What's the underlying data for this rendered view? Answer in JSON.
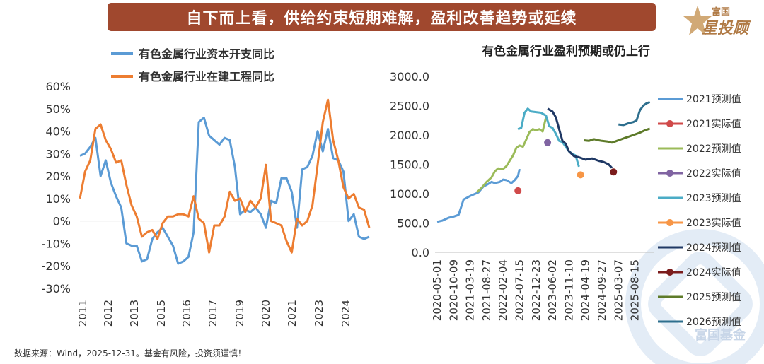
{
  "banner": {
    "title": "自下而上看，供给约束短期难解，盈利改善趋势或延续"
  },
  "logo": {
    "line1": "富国",
    "line2": "星投顾"
  },
  "watermark": {
    "text": "富国基金"
  },
  "source": {
    "text": "数据来源：Wind，2025-12-31。基金有风险，投资须谨慎！"
  },
  "colors": {
    "blue": "#5b9bd5",
    "orange": "#ed7d31",
    "banner": "#a0482e"
  },
  "chart_data": [
    {
      "type": "line",
      "title": "",
      "ylim": [
        -30,
        60
      ],
      "yticks": [
        "60%",
        "50%",
        "40%",
        "30%",
        "20%",
        "10%",
        "0%",
        "-10%",
        "-20%",
        "-30%"
      ],
      "xticks": [
        "2011",
        "2012",
        "2013",
        "2015",
        "2016",
        "2017",
        "2019",
        "2020",
        "2021",
        "2023",
        "2024"
      ],
      "xrange": [
        2011.0,
        2025.0
      ],
      "series": [
        {
          "name": "有色金属行业资本开支同比",
          "color": "#5b9bd5",
          "x": [
            2011.0,
            2011.25,
            2011.5,
            2011.75,
            2012.0,
            2012.25,
            2012.5,
            2012.75,
            2013.0,
            2013.25,
            2013.5,
            2013.75,
            2014.0,
            2014.25,
            2014.5,
            2014.75,
            2015.0,
            2015.25,
            2015.5,
            2015.75,
            2016.0,
            2016.25,
            2016.5,
            2016.75,
            2017.0,
            2017.25,
            2017.5,
            2017.75,
            2018.0,
            2018.25,
            2018.5,
            2018.75,
            2019.0,
            2019.25,
            2019.5,
            2019.75,
            2020.0,
            2020.25,
            2020.5,
            2020.75,
            2021.0,
            2021.25,
            2021.5,
            2021.75,
            2022.0,
            2022.25,
            2022.5,
            2022.75,
            2023.0,
            2023.25,
            2023.5,
            2023.75,
            2024.0,
            2024.25,
            2024.5,
            2024.75,
            2025.0
          ],
          "y": [
            29,
            30,
            33,
            37,
            20,
            27,
            17,
            11,
            6,
            -10,
            -11,
            -11,
            -18,
            -17,
            -8,
            -5,
            -3,
            -7,
            -11,
            -19,
            -18,
            -16,
            -5,
            44,
            46,
            38,
            36,
            34,
            37,
            36,
            24,
            3,
            5,
            4,
            6,
            3,
            -3,
            9,
            8,
            19,
            19,
            13,
            -3,
            23,
            24,
            29,
            40,
            31,
            41,
            28,
            27,
            22,
            0,
            3,
            -7,
            -8,
            -7
          ]
        },
        {
          "name": "有色金属行业在建工程同比",
          "color": "#ed7d31",
          "x": [
            2011.0,
            2011.25,
            2011.5,
            2011.75,
            2012.0,
            2012.25,
            2012.5,
            2012.75,
            2013.0,
            2013.25,
            2013.5,
            2013.75,
            2014.0,
            2014.25,
            2014.5,
            2014.75,
            2015.0,
            2015.25,
            2015.5,
            2015.75,
            2016.0,
            2016.25,
            2016.5,
            2016.75,
            2017.0,
            2017.25,
            2017.5,
            2017.75,
            2018.0,
            2018.25,
            2018.5,
            2018.75,
            2019.0,
            2019.25,
            2019.5,
            2019.75,
            2020.0,
            2020.25,
            2020.5,
            2020.75,
            2021.0,
            2021.25,
            2021.5,
            2021.75,
            2022.0,
            2022.25,
            2022.5,
            2022.75,
            2023.0,
            2023.25,
            2023.5,
            2023.75,
            2024.0,
            2024.25,
            2024.5,
            2024.75,
            2025.0
          ],
          "y": [
            10,
            22,
            27,
            41,
            43,
            36,
            32,
            26,
            27,
            16,
            7,
            2,
            -7,
            -5,
            -4,
            -8,
            -1,
            2,
            2,
            3,
            3,
            2,
            11,
            1,
            -1,
            -14,
            -2,
            -2,
            2,
            13,
            9,
            10,
            4,
            9,
            6,
            10,
            25,
            0,
            -1,
            -2,
            -9,
            -14,
            1,
            -2,
            0,
            7,
            25,
            44,
            54,
            36,
            27,
            15,
            10,
            12,
            6,
            5,
            -3
          ]
        }
      ]
    },
    {
      "type": "line",
      "title": "有色金属行业盈利预期或仍上行",
      "ylim": [
        0,
        3000
      ],
      "yticks": [
        "3000.0",
        "2500.0",
        "2000.0",
        "1500.0",
        "1000.0",
        "500.0",
        "0.0"
      ],
      "xticks": [
        "2020-05-01",
        "2020-10-09",
        "2021-03-19",
        "2021-08-27",
        "2022-02-04",
        "2022-07-15",
        "2022-12-23",
        "2023-06-02",
        "2023-11-10",
        "2024-04-19",
        "2024-09-27",
        "2025-03-07",
        "2025-08-15"
      ],
      "series": [
        {
          "name": "2021预测值",
          "color": "#5b9bd5",
          "kind": "line",
          "x": [
            0,
            0.3,
            0.7,
            1.0,
            1.3,
            1.6,
            2.0,
            2.5,
            2.8,
            3.0,
            3.3,
            3.5,
            3.8,
            4.0,
            4.2,
            4.5,
            4.7,
            4.9,
            5.0
          ],
          "y": [
            520,
            540,
            590,
            610,
            640,
            900,
            960,
            1020,
            1120,
            1150,
            1200,
            1180,
            1200,
            1240,
            1230,
            1180,
            1230,
            1300,
            1420
          ]
        },
        {
          "name": "2021实际值",
          "color": "#d04a4a",
          "kind": "point",
          "x": [
            4.9
          ],
          "y": [
            1050
          ]
        },
        {
          "name": "2022预测值",
          "color": "#9bbb59",
          "kind": "line",
          "x": [
            2.4,
            2.7,
            3.0,
            3.3,
            3.5,
            3.7,
            4.0,
            4.2,
            4.4,
            4.6,
            4.8,
            5.0,
            5.2,
            5.4,
            5.6,
            5.8,
            6.0,
            6.2,
            6.4,
            6.6
          ],
          "y": [
            1020,
            1100,
            1200,
            1280,
            1380,
            1430,
            1420,
            1470,
            1560,
            1650,
            1780,
            1820,
            1800,
            1920,
            2050,
            2100,
            2080,
            2100,
            2060,
            2300
          ]
        },
        {
          "name": "2022实际值",
          "color": "#8064a2",
          "kind": "point",
          "x": [
            6.7
          ],
          "y": [
            1870
          ]
        },
        {
          "name": "2023预测值",
          "color": "#4bacc6",
          "kind": "line",
          "x": [
            4.9,
            5.1,
            5.3,
            5.5,
            5.7,
            6.0,
            6.3,
            6.6,
            6.8,
            7.0,
            7.2,
            7.4,
            7.6,
            7.8,
            8.0,
            8.2,
            8.4,
            8.6
          ],
          "y": [
            2100,
            2120,
            2380,
            2450,
            2400,
            2390,
            2380,
            2330,
            2150,
            2120,
            2020,
            1900,
            1880,
            1800,
            1720,
            1680,
            1650,
            1460
          ]
        },
        {
          "name": "2023实际值",
          "color": "#f79646",
          "kind": "point",
          "x": [
            8.7
          ],
          "y": [
            1320
          ]
        },
        {
          "name": "2024预测值",
          "color": "#1f3864",
          "kind": "line",
          "x": [
            6.7,
            7.0,
            7.2,
            7.4,
            7.6,
            7.8,
            8.0,
            8.3,
            8.6,
            9.0,
            9.4,
            9.8,
            10.1,
            10.4,
            10.6
          ],
          "y": [
            2450,
            2400,
            2300,
            2100,
            1900,
            1850,
            1720,
            1640,
            1620,
            1580,
            1600,
            1560,
            1540,
            1500,
            1440
          ]
        },
        {
          "name": "2024实际值",
          "color": "#7b1c1c",
          "kind": "point",
          "x": [
            10.7
          ],
          "y": [
            1370
          ]
        },
        {
          "name": "2025预测值",
          "color": "#5e7b2a",
          "kind": "line",
          "x": [
            8.9,
            9.2,
            9.5,
            9.8,
            10.0,
            10.3,
            10.6,
            10.9,
            11.1,
            11.4,
            11.7,
            12.0,
            12.3,
            12.6,
            12.9
          ],
          "y": [
            1910,
            1900,
            1930,
            1910,
            1900,
            1890,
            1870,
            1900,
            1920,
            1950,
            1980,
            2010,
            2040,
            2080,
            2110
          ]
        },
        {
          "name": "2026预测值",
          "color": "#2e6f8e",
          "kind": "line",
          "x": [
            11.0,
            11.3,
            11.6,
            11.9,
            12.1,
            12.3,
            12.5,
            12.7,
            12.9
          ],
          "y": [
            2180,
            2170,
            2200,
            2220,
            2250,
            2420,
            2500,
            2540,
            2560
          ]
        }
      ]
    }
  ]
}
